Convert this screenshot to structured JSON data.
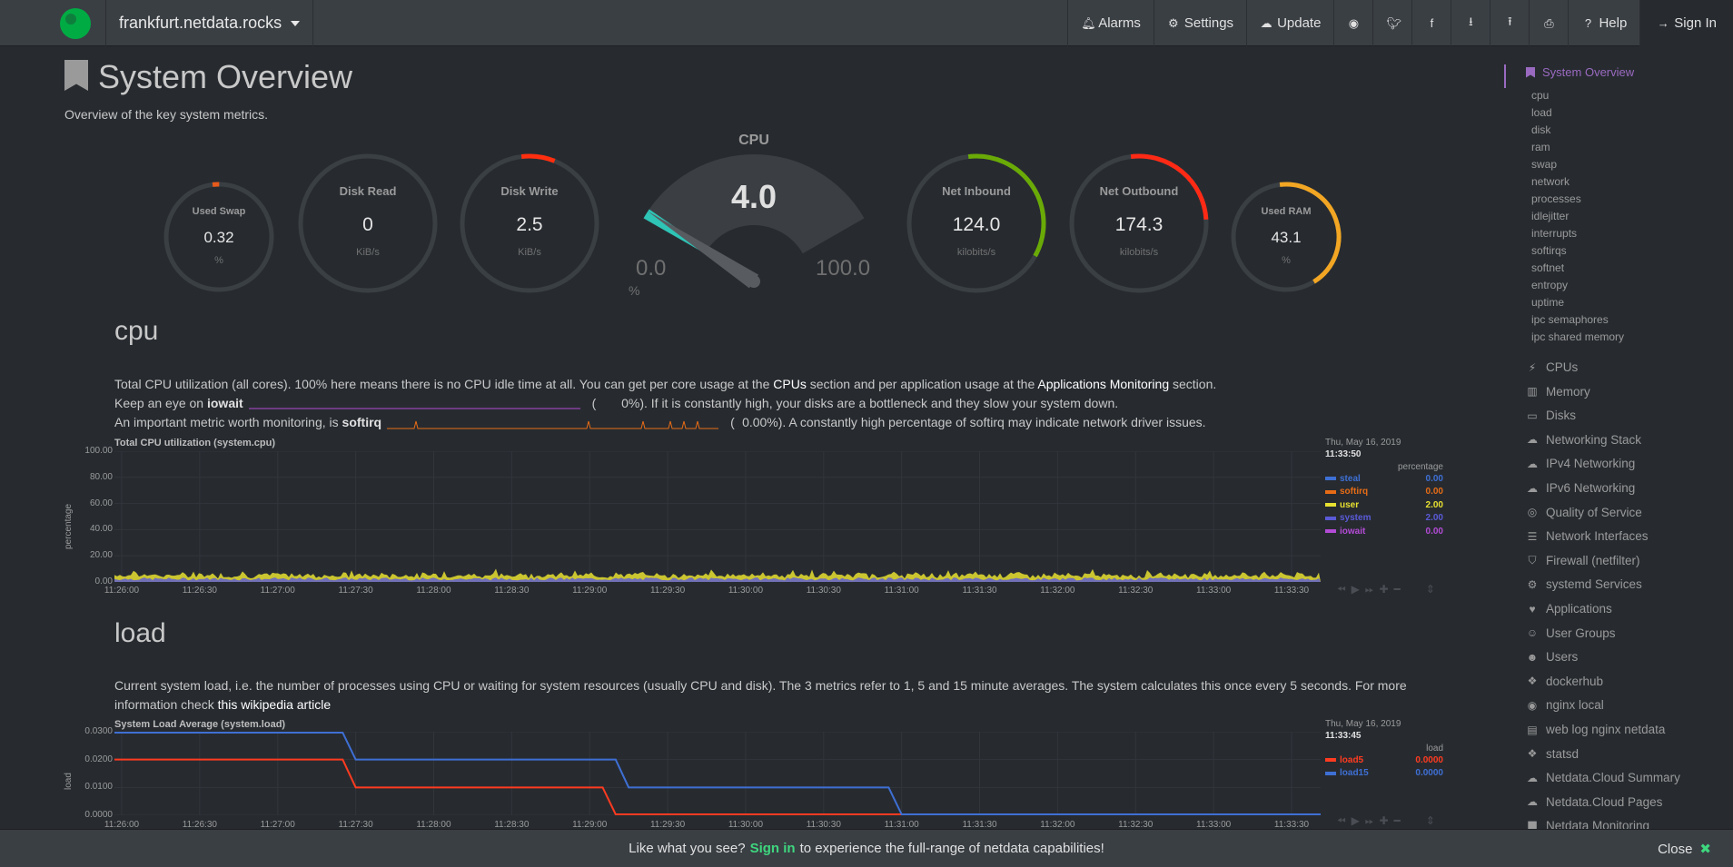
{
  "header": {
    "server": "frankfurt.netdata.rocks",
    "nav": [
      {
        "label": "Alarms",
        "icon": "bell-icon"
      },
      {
        "label": "Settings",
        "icon": "gear-icon"
      },
      {
        "label": "Update",
        "icon": "cloud-download-icon"
      },
      {
        "label": "",
        "icon": "github-icon"
      },
      {
        "label": "",
        "icon": "twitter-icon"
      },
      {
        "label": "",
        "icon": "facebook-icon"
      },
      {
        "label": "",
        "icon": "download-icon"
      },
      {
        "label": "",
        "icon": "upload-icon"
      },
      {
        "label": "",
        "icon": "print-icon"
      },
      {
        "label": "Help",
        "icon": "question-icon"
      },
      {
        "label": "Sign In",
        "icon": "sign-in-icon"
      }
    ]
  },
  "page": {
    "title": "System Overview",
    "subtitle": "Overview of the key system metrics."
  },
  "gauges": {
    "used_swap": {
      "title": "Used Swap",
      "value": "0.32",
      "unit": "%",
      "fraction": 0.0032,
      "color": "#e85a1b"
    },
    "disk_read": {
      "title": "Disk Read",
      "value": "0",
      "unit": "KiB/s",
      "fraction": 0.0,
      "color": "#e85a1b"
    },
    "disk_write": {
      "title": "Disk Write",
      "value": "2.5",
      "unit": "KiB/s",
      "fraction": 0.08,
      "color": "#ff2e0f"
    },
    "cpu": {
      "title": "CPU",
      "value": "4.0",
      "min": "0.0",
      "max": "100.0",
      "unit": "%",
      "percent": 4.0
    },
    "net_inbound": {
      "title": "Net Inbound",
      "value": "124.0",
      "unit": "kilobits/s",
      "fraction": 0.35,
      "color": "#6aaa07"
    },
    "net_outbound": {
      "title": "Net Outbound",
      "value": "174.3",
      "unit": "kilobits/s",
      "fraction": 0.26,
      "color": "#ff2a15"
    },
    "used_ram": {
      "title": "Used RAM",
      "value": "43.1",
      "unit": "%",
      "fraction": 0.431,
      "color": "#f2a623"
    }
  },
  "cpu_section": {
    "heading": "cpu",
    "desc1_a": "Total CPU utilization (all cores). 100% here means there is no CPU idle time at all. You can get per core usage at the ",
    "desc1_link1": "CPUs",
    "desc1_b": " section and per application usage at the ",
    "desc1_link2": "Applications Monitoring",
    "desc1_c": " section.",
    "desc2_a": "Keep an eye on ",
    "desc2_bold": "iowait",
    "desc2_paren_open": "(",
    "desc2_value": "0%",
    "desc2_c": "). If it is constantly high, your disks are a bottleneck and they slow your system down.",
    "desc3_a": "An important metric worth monitoring, is ",
    "desc3_bold": "softirq",
    "desc3_paren_open": "(",
    "desc3_value": "0.00%",
    "desc3_c": "). A constantly high percentage of softirq may indicate network driver issues."
  },
  "load_section": {
    "heading": "load",
    "desc_a": "Current system load, i.e. the number of processes using CPU or waiting for system resources (usually CPU and disk). The 3 metrics refer to 1, 5 and 15 minute averages. The system calculates this once every 5 seconds. For more information check ",
    "desc_link": "this wikipedia article"
  },
  "chart_data": [
    {
      "type": "area",
      "title": "Total CPU utilization (system.cpu)",
      "ylabel": "percentage",
      "ylim": [
        0,
        100
      ],
      "yticks": [
        "100.00",
        "80.00",
        "60.00",
        "40.00",
        "20.00",
        "0.00"
      ],
      "x": [
        "11:26:00",
        "11:26:30",
        "11:27:00",
        "11:27:30",
        "11:28:00",
        "11:28:30",
        "11:29:00",
        "11:29:30",
        "11:30:00",
        "11:30:30",
        "11:31:00",
        "11:31:30",
        "11:32:00",
        "11:32:30",
        "11:33:00",
        "11:33:30"
      ],
      "legend_date": "Thu, May 16, 2019",
      "legend_time": "11:33:50",
      "legend_units": "percentage",
      "series": [
        {
          "name": "steal",
          "value": "0.00",
          "color": "#3e6fd4"
        },
        {
          "name": "softirq",
          "value": "0.00",
          "color": "#e76c16"
        },
        {
          "name": "user",
          "value": "2.00",
          "color": "#e8e030"
        },
        {
          "name": "system",
          "value": "2.00",
          "color": "#5a5ad8"
        },
        {
          "name": "iowait",
          "value": "0.00",
          "color": "#b44bd6"
        }
      ]
    },
    {
      "type": "line",
      "title": "System Load Average (system.load)",
      "ylabel": "load",
      "ylim": [
        0,
        0.03
      ],
      "yticks": [
        "0.0300",
        "0.0200",
        "0.0100",
        "0.0000"
      ],
      "x": [
        "11:26:00",
        "11:26:30",
        "11:27:00",
        "11:27:30",
        "11:28:00",
        "11:28:30",
        "11:29:00",
        "11:29:30",
        "11:30:00",
        "11:30:30",
        "11:31:00",
        "11:31:30",
        "11:32:00",
        "11:32:30",
        "11:33:00",
        "11:33:30"
      ],
      "legend_date": "Thu, May 16, 2019",
      "legend_time": "11:33:45",
      "legend_units": "load",
      "series": [
        {
          "name": "load5",
          "value": "0.0000",
          "color": "#ff3b20",
          "points": [
            [
              "11:25:55",
              0.02
            ],
            [
              "11:27:25",
              0.02
            ],
            [
              "11:27:30",
              0.01
            ],
            [
              "11:29:05",
              0.01
            ],
            [
              "11:29:10",
              0.0
            ],
            [
              "11:33:50",
              0.0
            ]
          ]
        },
        {
          "name": "load15",
          "value": "0.0000",
          "color": "#3e6fd4",
          "points": [
            [
              "11:25:55",
              0.03
            ],
            [
              "11:27:25",
              0.03
            ],
            [
              "11:27:30",
              0.02
            ],
            [
              "11:29:10",
              0.02
            ],
            [
              "11:29:15",
              0.01
            ],
            [
              "11:30:55",
              0.01
            ],
            [
              "11:31:00",
              0.0
            ],
            [
              "11:33:50",
              0.0
            ]
          ]
        }
      ]
    }
  ],
  "sidebar": {
    "active": "System Overview",
    "sub": [
      "cpu",
      "load",
      "disk",
      "ram",
      "swap",
      "network",
      "processes",
      "idlejitter",
      "interrupts",
      "softirqs",
      "softnet",
      "entropy",
      "uptime",
      "ipc semaphores",
      "ipc shared memory"
    ],
    "items": [
      {
        "label": "CPUs",
        "icon": "bolt-icon"
      },
      {
        "label": "Memory",
        "icon": "memory-icon"
      },
      {
        "label": "Disks",
        "icon": "hdd-icon"
      },
      {
        "label": "Networking Stack",
        "icon": "cloud-icon"
      },
      {
        "label": "IPv4 Networking",
        "icon": "cloud-icon"
      },
      {
        "label": "IPv6 Networking",
        "icon": "cloud-icon"
      },
      {
        "label": "Quality of Service",
        "icon": "globe-icon"
      },
      {
        "label": "Network Interfaces",
        "icon": "sitemap-icon"
      },
      {
        "label": "Firewall (netfilter)",
        "icon": "shield-icon"
      },
      {
        "label": "systemd Services",
        "icon": "cogs-icon"
      },
      {
        "label": "Applications",
        "icon": "heartbeat-icon"
      },
      {
        "label": "User Groups",
        "icon": "users-icon"
      },
      {
        "label": "Users",
        "icon": "user-icon"
      },
      {
        "label": "dockerhub",
        "icon": "puzzle-icon"
      },
      {
        "label": "nginx local",
        "icon": "eye-icon"
      },
      {
        "label": "web log nginx netdata",
        "icon": "file-icon"
      },
      {
        "label": "statsd",
        "icon": "puzzle-icon"
      },
      {
        "label": "Netdata.Cloud Summary",
        "icon": "cloud-icon"
      },
      {
        "label": "Netdata.Cloud Pages",
        "icon": "cloud-icon"
      },
      {
        "label": "Netdata Monitoring",
        "icon": "chart-icon"
      }
    ]
  },
  "footer": {
    "text_a": "Like what you see?",
    "link": "Sign in",
    "text_b": "to experience the full-range of netdata capabilities!",
    "close": "Close"
  }
}
